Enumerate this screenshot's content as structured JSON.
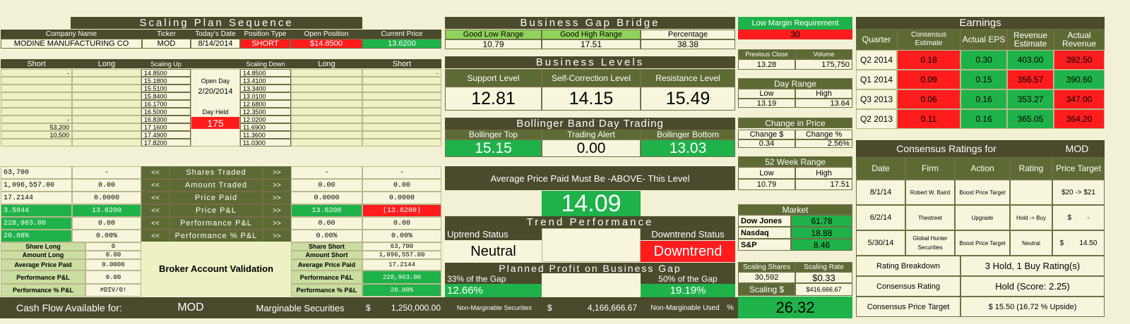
{
  "scaling_plan": {
    "title": "Scaling Plan Sequence",
    "headers": [
      "Company Name",
      "Ticker",
      "Today's Date",
      "Position Type",
      "Open Position",
      "Current Price"
    ],
    "values": [
      "MODINE MANUFACTURING CO",
      "MOD",
      "8/14/2014",
      "SHORT",
      "$14.8500",
      "13.6200"
    ],
    "col_short": "Short",
    "col_long": "Long",
    "col_scaling_up": "Scaling Up",
    "col_scaling_down": "Scaling Down",
    "left_short": [
      "-",
      "",
      "",
      "",
      "",
      "",
      "-",
      "53,200",
      "10,500",
      ""
    ],
    "scaling_up": [
      "14.8500",
      "15.1800",
      "15.5100",
      "15.8400",
      "16.1700",
      "16.5000",
      "16.8300",
      "17.1600",
      "17.4900",
      "17.8200"
    ],
    "open_day_label": "Open Day",
    "open_day": "2/20/2014",
    "day_held_label": "Day Held",
    "day_held": "175",
    "scaling_down": [
      "14.8500",
      "13.4100",
      "13.3400",
      "13.0100",
      "12.6800",
      "12.3500",
      "12.0200",
      "11.6900",
      "11.3600",
      "11.0300"
    ],
    "right_short": [
      "-",
      "",
      "",
      "",
      "",
      "",
      "",
      "",
      "",
      ""
    ]
  },
  "summary_rows": [
    {
      "label": "Shares Traded",
      "l_short": "63,700",
      "l_long": "-",
      "r_long": "-",
      "r_short": "-"
    },
    {
      "label": "Amount Traded",
      "l_short": "1,096,557.00",
      "l_long": "0.00",
      "r_long": "0.00",
      "r_short": "0.00"
    },
    {
      "label": "Price Paid",
      "l_short": "17.2144",
      "l_long": "0.0000",
      "r_long": "0.0000",
      "r_short": "0.0000"
    },
    {
      "label": "Price P&L",
      "l_short": "3.5944",
      "l_long": "13.6200",
      "r_long": "13.6200",
      "r_short": "(13.6200)"
    },
    {
      "label": "Performance P&L",
      "l_short": "228,963.00",
      "l_long": "0.00",
      "r_long": "0.00",
      "r_short": "0.00"
    },
    {
      "label": "Performance % P&L",
      "l_short": "20.88%",
      "l_long": "0.00%",
      "r_long": "0.00%",
      "r_short": "0.00%"
    }
  ],
  "arrow_left": "<<",
  "arrow_right": ">>",
  "validation": {
    "title": "Broker Account Validation",
    "left": [
      [
        "Share Long",
        "0"
      ],
      [
        "Amount Long",
        "0.00"
      ],
      [
        "Average Price Paid",
        "0.0000"
      ],
      [
        "Performance P&L",
        "0.00"
      ],
      [
        "Performance % P&L",
        "#DIV/0!"
      ]
    ],
    "right": [
      [
        "Share Short",
        "63,700"
      ],
      [
        "Amount Short",
        "1,096,557.00"
      ],
      [
        "Average Price Paid",
        "17.2144"
      ],
      [
        "Performance P&L",
        "228,963.00"
      ],
      [
        "Performance % P&L",
        "20.88%"
      ]
    ]
  },
  "cash_flow": {
    "label": "Cash Flow Available for:",
    "ticker": "MOD",
    "marginable_label": "Marginable Securities",
    "marginable_cur": "$",
    "marginable_value": "1,250,000.00",
    "nonmarg_label": "Non-Marginable Securities",
    "nonmarg_cur": "$",
    "nonmarg_value": "4,166,666.67",
    "nonmarg_used_label": "Non-Marginable Used",
    "nonmarg_used_pct": "%",
    "big_value": "26.32"
  },
  "gap_bridge": {
    "title": "Business Gap Bridge",
    "headers": [
      "Good Low Range",
      "Good High Range",
      "Percentage"
    ],
    "values": [
      "10.79",
      "17.51",
      "38.38"
    ]
  },
  "business_levels": {
    "title": "Business Levels",
    "headers": [
      "Support Level",
      "Self-Correction Level",
      "Resistance Level"
    ],
    "values": [
      "12.81",
      "14.15",
      "15.49"
    ]
  },
  "bollinger": {
    "title": "Bollinger Band Day Trading",
    "headers": [
      "Bollinger Top",
      "Trading Alert",
      "Bollinger Bottom"
    ],
    "values": [
      "15.15",
      "0.00",
      "13.03"
    ]
  },
  "avg_price": {
    "label": "Average Price Paid Must Be -ABOVE- This Level",
    "value": "14.09"
  },
  "trend": {
    "title": "Trend Performance",
    "up_label": "Uptrend Status",
    "up_value": "Neutral",
    "down_label": "Downtrend Status",
    "down_value": "Downtrend"
  },
  "planned": {
    "title": "Planned Profit on Business Gap",
    "l_label": "33% of the Gap",
    "l_value": "12.66%",
    "r_label": "50% of the Gap",
    "r_value": "19.19%"
  },
  "low_margin": {
    "label": "Low Margin Requirement",
    "value": "30"
  },
  "prev": {
    "headers": [
      "Previous Close",
      "Volume"
    ],
    "values": [
      "13.28",
      "175,750"
    ]
  },
  "day_range": {
    "title": "Day Range",
    "headers": [
      "Low",
      "High"
    ],
    "values": [
      "13.19",
      "13.64"
    ]
  },
  "change": {
    "title": "Change in Price",
    "headers": [
      "Change $",
      "Change %"
    ],
    "values": [
      "0.34",
      "2.56%"
    ]
  },
  "week52": {
    "title": "52 Week Range",
    "headers": [
      "Low",
      "High"
    ],
    "values": [
      "10.79",
      "17.51"
    ]
  },
  "market": {
    "title": "Market",
    "rows": [
      [
        "Dow Jones",
        "61.78"
      ],
      [
        "Nasdaq",
        "18.88"
      ],
      [
        "S&P",
        "8.46"
      ]
    ]
  },
  "scaling": {
    "headers": [
      "Scaling Shares",
      "Scaling Rate"
    ],
    "values": [
      "30,592",
      "$0.33"
    ],
    "dollar_label": "Scaling $",
    "dollar_value": "$416,666.67"
  },
  "earnings": {
    "title": "Earnings",
    "headers": [
      "Quarter",
      "Consensus Estimate",
      "Actual  EPS",
      "Revenue Estimate",
      "Actual Revenue"
    ],
    "rows": [
      [
        "Q2 2014",
        "0.18",
        "0.30",
        "403.00",
        "392.50"
      ],
      [
        "Q1 2014",
        "0.09",
        "0.15",
        "356.57",
        "390.60"
      ],
      [
        "Q3 2013",
        "0.06",
        "0.16",
        "353.27",
        "347.00"
      ],
      [
        "Q2 2013",
        "0.11",
        "0.16",
        "365.05",
        "364.20"
      ]
    ]
  },
  "ratings": {
    "title": "Consensus Ratings for",
    "ticker": "MOD",
    "headers": [
      "Date",
      "Firm",
      "Action",
      "Rating",
      "Price Target"
    ],
    "rows": [
      {
        "date": "8/1/14",
        "firm": "Robert W. Baird",
        "action": "Boost Price Target",
        "rating": "",
        "target": "$20 -> $21"
      },
      {
        "date": "6/2/14",
        "firm": "Thestreet",
        "action": "Upgrade",
        "rating": "Hold -> Buy",
        "target": "$        -"
      },
      {
        "date": "5/30/14",
        "firm": "Global Hunter Securities",
        "action": "Boost Price Target",
        "rating": "Neutral",
        "target": "$        14.50"
      }
    ],
    "breakdown_label": "Rating Breakdown",
    "breakdown": "3 Hold, 1 Buy Rating(s)",
    "consensus_label": "Consensus Rating",
    "consensus": "Hold (Score: 2.25)",
    "target_label": "Consensus Price Target",
    "target": "$ 15.50 (16.72 % Upside)"
  },
  "colors": {
    "dark": "#4a4a2c",
    "olive": "#5e6a34",
    "green": "#1fb24a",
    "red": "#ff1c1c",
    "light_green": "#8fd35a",
    "cream": "#eef1c3"
  }
}
